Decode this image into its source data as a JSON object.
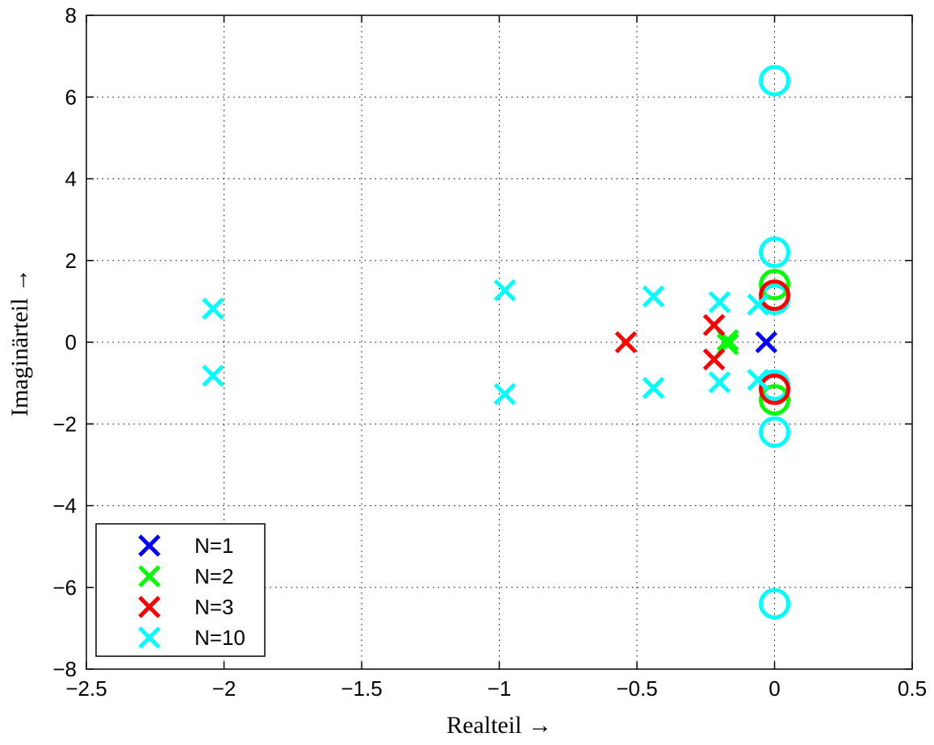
{
  "chart_data": {
    "type": "scatter",
    "title": "",
    "xlabel": "Realteil →",
    "ylabel": "Imaginärteil →",
    "xlim": [
      -2.5,
      0.5
    ],
    "ylim": [
      -8,
      8
    ],
    "xticks": [
      -2.5,
      -2,
      -1.5,
      -1,
      -0.5,
      0,
      0.5
    ],
    "yticks": [
      -8,
      -6,
      -4,
      -2,
      0,
      2,
      4,
      6,
      8
    ],
    "xtick_labels": [
      "−2.5",
      "−2",
      "−1.5",
      "−1",
      "−0.5",
      "0",
      "0.5"
    ],
    "ytick_labels": [
      "−8",
      "−6",
      "−4",
      "−2",
      "0",
      "2",
      "4",
      "6",
      "8"
    ],
    "grid": true,
    "legend_position": "bottom-left",
    "series": [
      {
        "name": "N=1",
        "color": "#0000ff",
        "poles": [
          [
            -0.03,
            0
          ]
        ],
        "zeros": []
      },
      {
        "name": "N=2",
        "color": "#00ff00",
        "poles": [
          [
            -0.17,
            0.05
          ],
          [
            -0.17,
            -0.05
          ]
        ],
        "zeros": [
          [
            0,
            1.41
          ],
          [
            0,
            -1.41
          ]
        ]
      },
      {
        "name": "N=3",
        "color": "#ff0000",
        "poles": [
          [
            -0.54,
            0
          ],
          [
            -0.22,
            0.42
          ],
          [
            -0.22,
            -0.42
          ]
        ],
        "zeros": [
          [
            0,
            1.15
          ],
          [
            0,
            -1.15
          ]
        ]
      },
      {
        "name": "N=10",
        "color": "#00ffff",
        "poles": [
          [
            -2.04,
            0.82
          ],
          [
            -2.04,
            -0.82
          ],
          [
            -0.98,
            1.27
          ],
          [
            -0.98,
            -1.27
          ],
          [
            -0.44,
            1.12
          ],
          [
            -0.44,
            -1.12
          ],
          [
            -0.2,
            0.98
          ],
          [
            -0.2,
            -0.98
          ],
          [
            -0.06,
            0.92
          ],
          [
            -0.06,
            -0.92
          ]
        ],
        "zeros": [
          [
            0,
            6.4
          ],
          [
            0,
            -6.4
          ],
          [
            0,
            2.2
          ],
          [
            0,
            -2.2
          ],
          [
            0,
            1.05
          ],
          [
            0,
            -1.05
          ]
        ]
      }
    ]
  }
}
